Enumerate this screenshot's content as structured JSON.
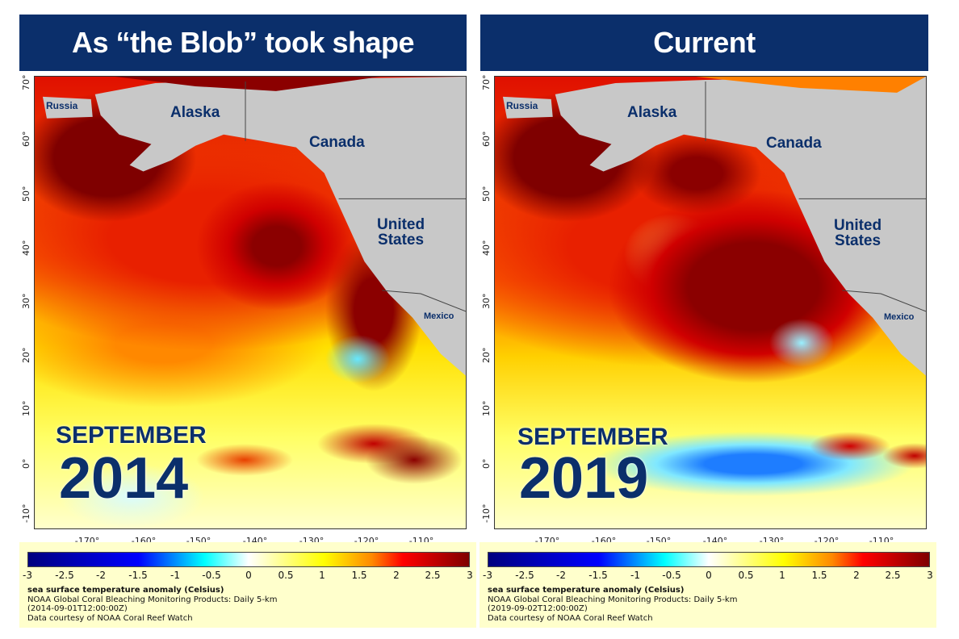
{
  "panels": [
    {
      "title": "As “the Blob” took shape",
      "month": "SEPTEMBER",
      "year": "2014",
      "legend": {
        "variable": "sea surface temperature anomaly (Celsius)",
        "product": "NOAA Global Coral Bleaching Monitoring Products: Daily 5-km",
        "timestamp": "(2014-09-01T12:00:00Z)",
        "credit": "Data courtesy of NOAA Coral Reef Watch"
      }
    },
    {
      "title": "Current",
      "month": "SEPTEMBER",
      "year": "2019",
      "legend": {
        "variable": "sea surface temperature anomaly (Celsius)",
        "product": "NOAA Global Coral Bleaching Monitoring Products: Daily 5-km",
        "timestamp": "(2019-09-02T12:00:00Z)",
        "credit": "Data courtesy of NOAA Coral Reef Watch"
      }
    }
  ],
  "regions": {
    "russia": "Russia",
    "alaska": "Alaska",
    "canada": "Canada",
    "us1": "United",
    "us2": "States",
    "mexico": "Mexico"
  },
  "lat_ticks": [
    "70°",
    "60°",
    "50°",
    "40°",
    "30°",
    "20°",
    "10°",
    "0°",
    "-10°"
  ],
  "lon_ticks": [
    "-170°",
    "-160°",
    "-150°",
    "-140°",
    "-130°",
    "-120°",
    "-110°"
  ],
  "colorbar_ticks": [
    "-3",
    "-2.5",
    "-2",
    "-1.5",
    "-1",
    "-0.5",
    "0",
    "0.5",
    "1",
    "1.5",
    "2",
    "2.5",
    "3"
  ],
  "colorbar_colors": [
    "#00007f",
    "#0000ff",
    "#00ffff",
    "#ffffff",
    "#ffff00",
    "#ff0000",
    "#7f0000"
  ]
}
